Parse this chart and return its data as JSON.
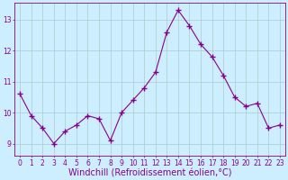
{
  "x": [
    0,
    1,
    2,
    3,
    4,
    5,
    6,
    7,
    8,
    9,
    10,
    11,
    12,
    13,
    14,
    15,
    16,
    17,
    18,
    19,
    20,
    21,
    22,
    23
  ],
  "y": [
    10.6,
    9.9,
    9.5,
    9.0,
    9.4,
    9.6,
    9.9,
    9.8,
    9.1,
    10.0,
    10.4,
    10.8,
    11.3,
    12.6,
    13.3,
    12.8,
    12.2,
    11.8,
    11.2,
    10.5,
    10.2,
    10.3,
    9.5,
    9.6
  ],
  "line_color": "#880088",
  "marker": "+",
  "marker_size": 4,
  "marker_lw": 1.0,
  "bg_color": "#cceeff",
  "grid_color": "#aacccc",
  "xlabel": "Windchill (Refroidissement éolien,°C)",
  "ylim": [
    8.6,
    13.55
  ],
  "xlim": [
    -0.5,
    23.5
  ],
  "yticks": [
    9,
    10,
    11,
    12,
    13
  ],
  "xticks": [
    0,
    1,
    2,
    3,
    4,
    5,
    6,
    7,
    8,
    9,
    10,
    11,
    12,
    13,
    14,
    15,
    16,
    17,
    18,
    19,
    20,
    21,
    22,
    23
  ],
  "tick_fontsize": 5.5,
  "xlabel_fontsize": 7,
  "label_color": "#880088",
  "linewidth": 0.8
}
